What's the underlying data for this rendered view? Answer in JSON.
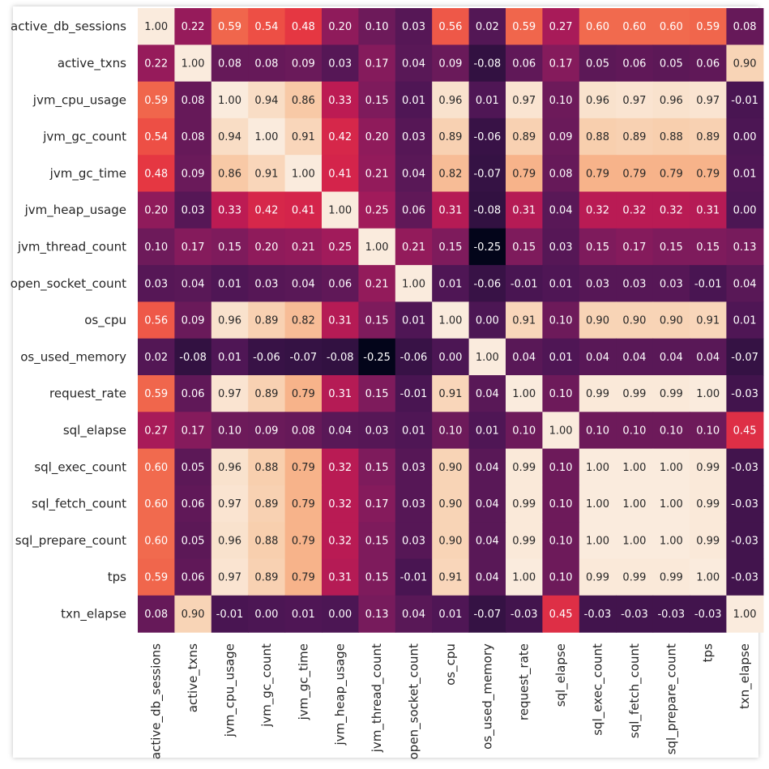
{
  "chart_data": {
    "type": "heatmap",
    "title": "",
    "xlabel": "",
    "ylabel": "",
    "labels": [
      "active_db_sessions",
      "active_txns",
      "jvm_cpu_usage",
      "jvm_gc_count",
      "jvm_gc_time",
      "jvm_heap_usage",
      "jvm_thread_count",
      "open_socket_count",
      "os_cpu",
      "os_used_memory",
      "request_rate",
      "sql_elapse",
      "sql_exec_count",
      "sql_fetch_count",
      "sql_prepare_count",
      "tps",
      "txn_elapse"
    ],
    "value_format": "2 decimals",
    "colorbar": false,
    "colormap": "rocket",
    "color_range": [
      -0.25,
      1.0
    ],
    "matrix": [
      [
        1.0,
        0.22,
        0.59,
        0.54,
        0.48,
        0.2,
        0.1,
        0.03,
        0.56,
        0.02,
        0.59,
        0.27,
        0.6,
        0.6,
        0.6,
        0.59,
        0.08
      ],
      [
        0.22,
        1.0,
        0.08,
        0.08,
        0.09,
        0.03,
        0.17,
        0.04,
        0.09,
        -0.08,
        0.06,
        0.17,
        0.05,
        0.06,
        0.05,
        0.06,
        0.9
      ],
      [
        0.59,
        0.08,
        1.0,
        0.94,
        0.86,
        0.33,
        0.15,
        0.01,
        0.96,
        0.01,
        0.97,
        0.1,
        0.96,
        0.97,
        0.96,
        0.97,
        -0.01
      ],
      [
        0.54,
        0.08,
        0.94,
        1.0,
        0.91,
        0.42,
        0.2,
        0.03,
        0.89,
        -0.06,
        0.89,
        0.09,
        0.88,
        0.89,
        0.88,
        0.89,
        0.0
      ],
      [
        0.48,
        0.09,
        0.86,
        0.91,
        1.0,
        0.41,
        0.21,
        0.04,
        0.82,
        -0.07,
        0.79,
        0.08,
        0.79,
        0.79,
        0.79,
        0.79,
        0.01
      ],
      [
        0.2,
        0.03,
        0.33,
        0.42,
        0.41,
        1.0,
        0.25,
        0.06,
        0.31,
        -0.08,
        0.31,
        0.04,
        0.32,
        0.32,
        0.32,
        0.31,
        0.0
      ],
      [
        0.1,
        0.17,
        0.15,
        0.2,
        0.21,
        0.25,
        1.0,
        0.21,
        0.15,
        -0.25,
        0.15,
        0.03,
        0.15,
        0.17,
        0.15,
        0.15,
        0.13
      ],
      [
        0.03,
        0.04,
        0.01,
        0.03,
        0.04,
        0.06,
        0.21,
        1.0,
        0.01,
        -0.06,
        -0.01,
        0.01,
        0.03,
        0.03,
        0.03,
        -0.01,
        0.04
      ],
      [
        0.56,
        0.09,
        0.96,
        0.89,
        0.82,
        0.31,
        0.15,
        0.01,
        1.0,
        -0.0,
        0.91,
        0.1,
        0.9,
        0.9,
        0.9,
        0.91,
        0.01
      ],
      [
        0.02,
        -0.08,
        0.01,
        -0.06,
        -0.07,
        -0.08,
        -0.25,
        -0.06,
        -0.0,
        1.0,
        0.04,
        0.01,
        0.04,
        0.04,
        0.04,
        0.04,
        -0.07
      ],
      [
        0.59,
        0.06,
        0.97,
        0.89,
        0.79,
        0.31,
        0.15,
        -0.01,
        0.91,
        0.04,
        1.0,
        0.1,
        0.99,
        0.99,
        0.99,
        1.0,
        -0.03
      ],
      [
        0.27,
        0.17,
        0.1,
        0.09,
        0.08,
        0.04,
        0.03,
        0.01,
        0.1,
        0.01,
        0.1,
        1.0,
        0.1,
        0.1,
        0.1,
        0.1,
        0.45
      ],
      [
        0.6,
        0.05,
        0.96,
        0.88,
        0.79,
        0.32,
        0.15,
        0.03,
        0.9,
        0.04,
        0.99,
        0.1,
        1.0,
        1.0,
        1.0,
        0.99,
        -0.03
      ],
      [
        0.6,
        0.06,
        0.97,
        0.89,
        0.79,
        0.32,
        0.17,
        0.03,
        0.9,
        0.04,
        0.99,
        0.1,
        1.0,
        1.0,
        1.0,
        0.99,
        -0.03
      ],
      [
        0.6,
        0.05,
        0.96,
        0.88,
        0.79,
        0.32,
        0.15,
        0.03,
        0.9,
        0.04,
        0.99,
        0.1,
        1.0,
        1.0,
        1.0,
        0.99,
        -0.03
      ],
      [
        0.59,
        0.06,
        0.97,
        0.89,
        0.79,
        0.31,
        0.15,
        -0.01,
        0.91,
        0.04,
        1.0,
        0.1,
        0.99,
        0.99,
        0.99,
        1.0,
        -0.03
      ],
      [
        0.08,
        0.9,
        -0.01,
        0.0,
        0.01,
        0.0,
        0.13,
        0.04,
        0.01,
        -0.07,
        -0.03,
        0.45,
        -0.03,
        -0.03,
        -0.03,
        -0.03,
        1.0
      ]
    ]
  }
}
